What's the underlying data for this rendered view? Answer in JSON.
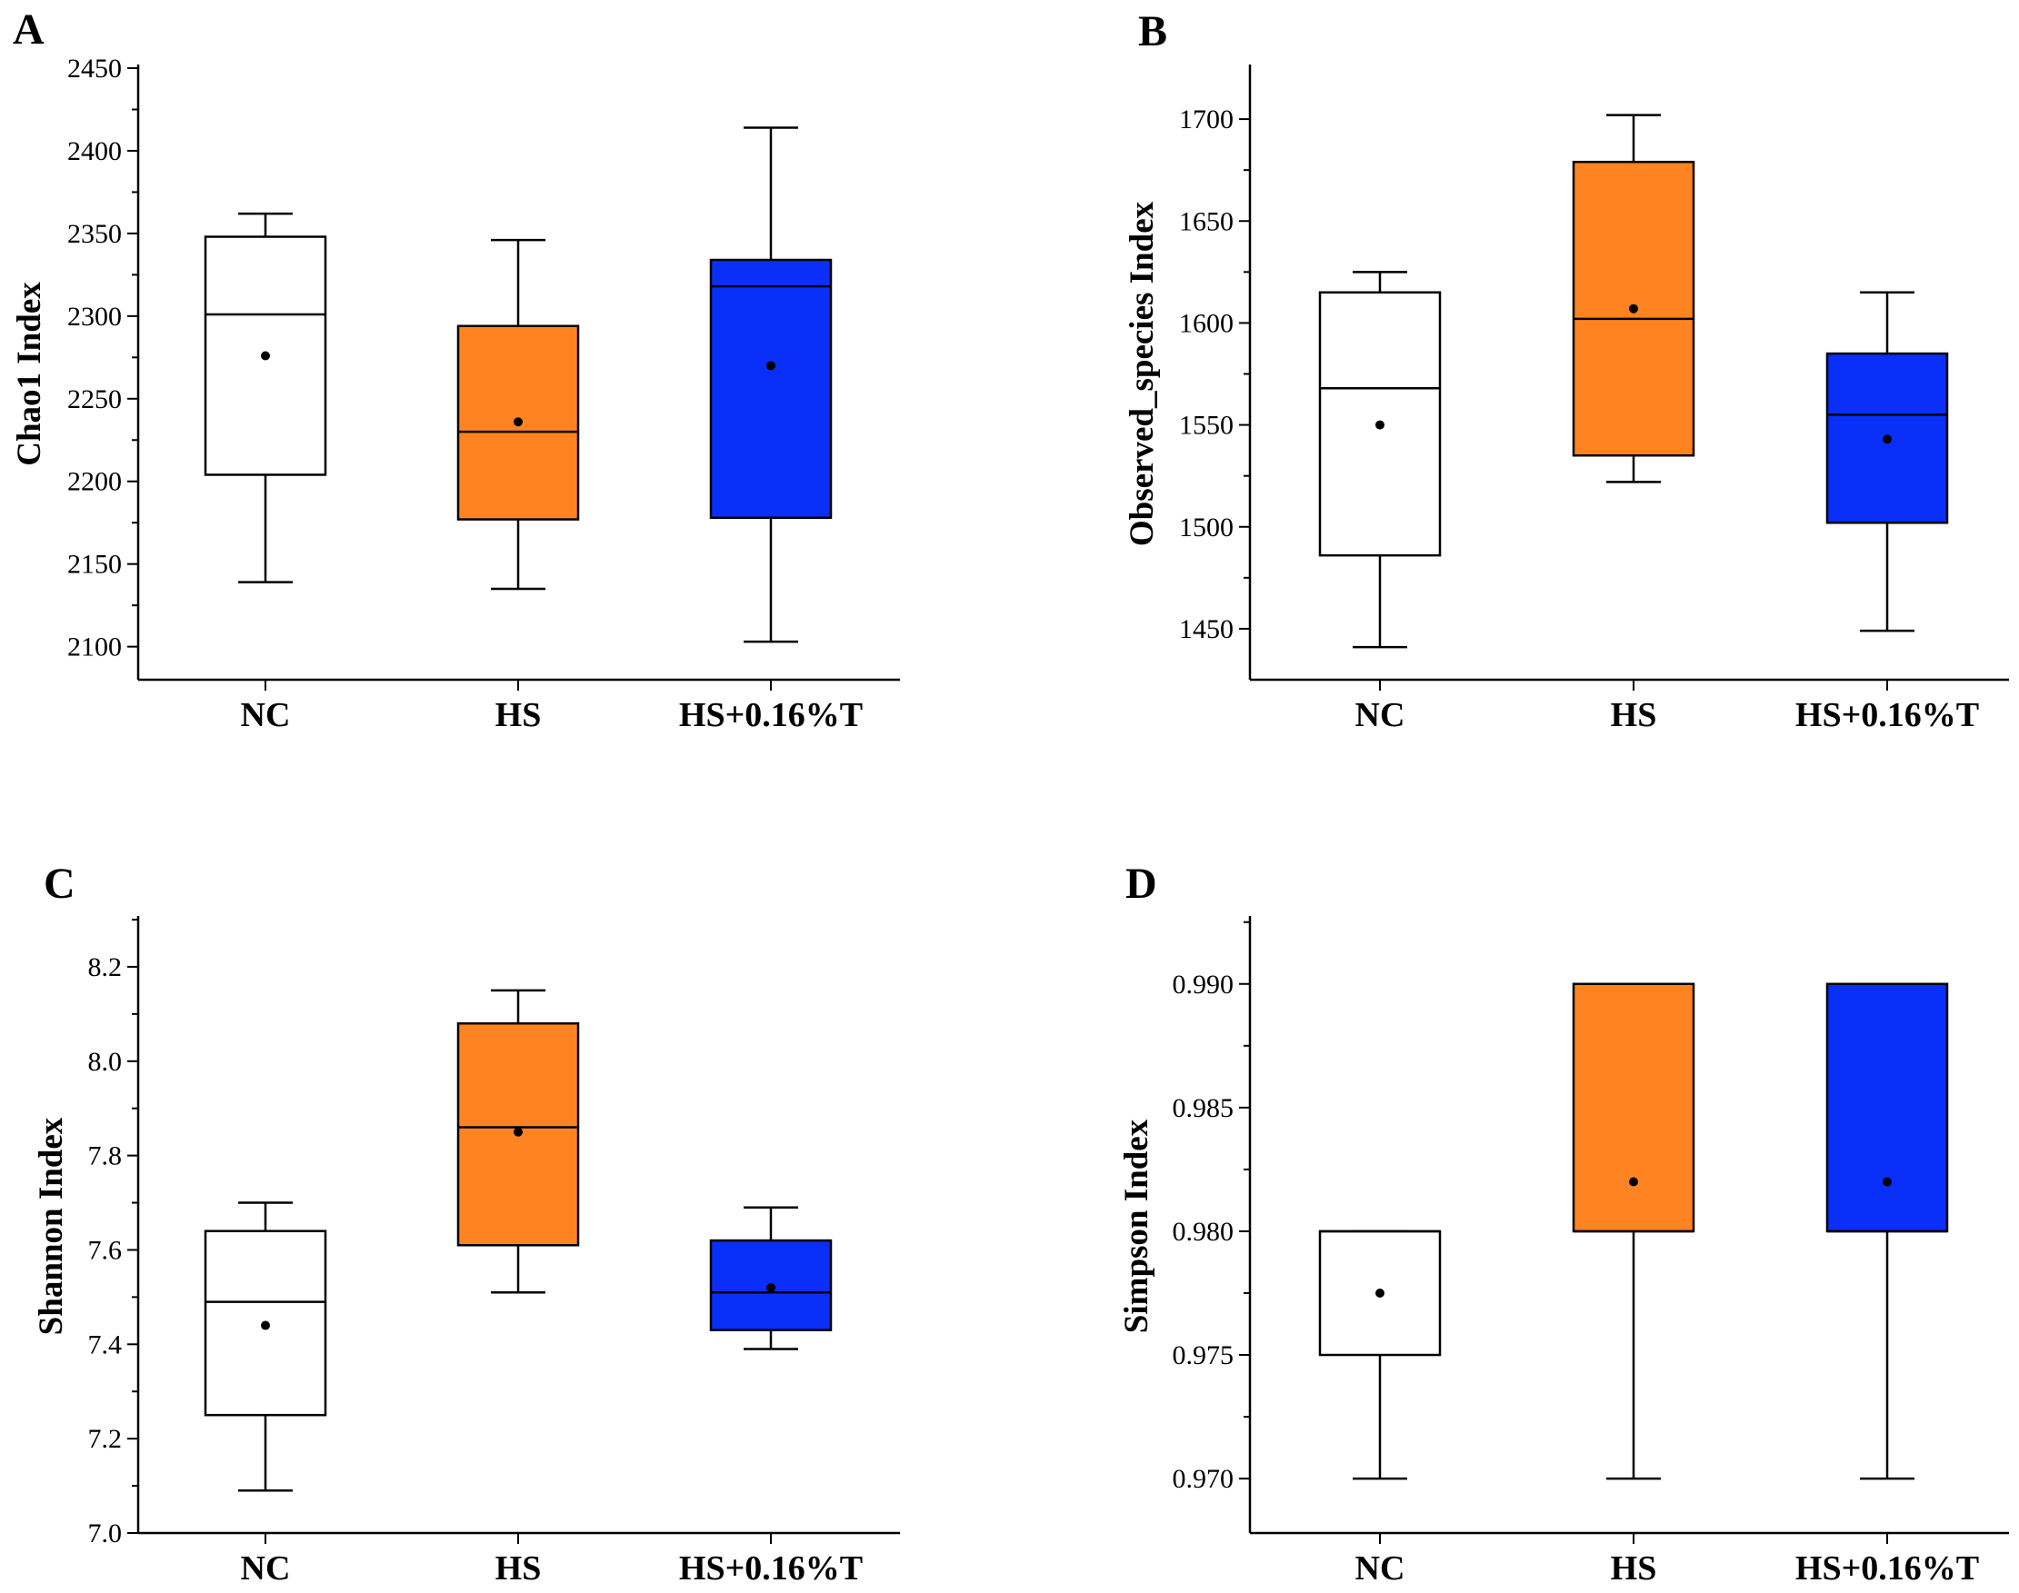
{
  "colors": {
    "NC": "#ffffff",
    "HS": "#ff8421",
    "HS_T": "#0a2ff9",
    "stroke": "#000000"
  },
  "chart_data": [
    {
      "panel": "A",
      "type": "box",
      "ylabel": "Chao1 Index",
      "xlabel": "",
      "ylim": [
        2080,
        2450
      ],
      "yticks": [
        2100,
        2150,
        2200,
        2250,
        2300,
        2350,
        2400,
        2450
      ],
      "tick_decimals": 0,
      "categories": [
        "NC",
        "HS",
        "HS+0.16%T"
      ],
      "boxes": [
        {
          "name": "NC",
          "min": 2139,
          "q1": 2204,
          "median": 2301,
          "q3": 2348,
          "max": 2362,
          "mean": 2276
        },
        {
          "name": "HS",
          "min": 2135,
          "q1": 2177,
          "median": 2230,
          "q3": 2294,
          "max": 2346,
          "mean": 2236
        },
        {
          "name": "HS+0.16%T",
          "min": 2103,
          "q1": 2178,
          "median": 2318,
          "q3": 2334,
          "max": 2414,
          "mean": 2270
        }
      ]
    },
    {
      "panel": "B",
      "type": "box",
      "ylabel": "Observed_species Index",
      "xlabel": "",
      "ylim": [
        1425,
        1725
      ],
      "yticks": [
        1450,
        1500,
        1550,
        1600,
        1650,
        1700
      ],
      "tick_decimals": 0,
      "categories": [
        "NC",
        "HS",
        "HS+0.16%T"
      ],
      "boxes": [
        {
          "name": "NC",
          "min": 1441,
          "q1": 1486,
          "median": 1568,
          "q3": 1615,
          "max": 1625,
          "mean": 1550
        },
        {
          "name": "HS",
          "min": 1522,
          "q1": 1535,
          "median": 1602,
          "q3": 1679,
          "max": 1702,
          "mean": 1607
        },
        {
          "name": "HS+0.16%T",
          "min": 1449,
          "q1": 1502,
          "median": 1555,
          "q3": 1585,
          "max": 1615,
          "mean": 1543
        }
      ]
    },
    {
      "panel": "C",
      "type": "box",
      "ylabel": "Shannon Index",
      "xlabel": "",
      "ylim": [
        7.0,
        8.3
      ],
      "yticks": [
        7.0,
        7.2,
        7.4,
        7.6,
        7.8,
        8.0,
        8.2
      ],
      "tick_decimals": 1,
      "categories": [
        "NC",
        "HS",
        "HS+0.16%T"
      ],
      "boxes": [
        {
          "name": "NC",
          "min": 7.09,
          "q1": 7.25,
          "median": 7.49,
          "q3": 7.64,
          "max": 7.7,
          "mean": 7.44
        },
        {
          "name": "HS",
          "min": 7.51,
          "q1": 7.61,
          "median": 7.86,
          "q3": 8.08,
          "max": 8.15,
          "mean": 7.85
        },
        {
          "name": "HS+0.16%T",
          "min": 7.39,
          "q1": 7.43,
          "median": 7.51,
          "q3": 7.62,
          "max": 7.69,
          "mean": 7.52
        }
      ]
    },
    {
      "panel": "D",
      "type": "box",
      "ylabel": "Simpson Index",
      "xlabel": "",
      "ylim": [
        0.9678,
        0.9926
      ],
      "yticks": [
        0.97,
        0.975,
        0.98,
        0.985,
        0.99
      ],
      "tick_decimals": 3,
      "categories": [
        "NC",
        "HS",
        "HS+0.16%T"
      ],
      "boxes": [
        {
          "name": "NC",
          "min": 0.97,
          "q1": 0.975,
          "median": 0.98,
          "q3": 0.98,
          "max": 0.98,
          "mean": 0.9775
        },
        {
          "name": "HS",
          "min": 0.97,
          "q1": 0.98,
          "median": 0.98,
          "q3": 0.99,
          "max": 0.99,
          "mean": 0.982
        },
        {
          "name": "HS+0.16%T",
          "min": 0.97,
          "q1": 0.98,
          "median": 0.98,
          "q3": 0.99,
          "max": 0.99,
          "mean": 0.982
        }
      ]
    }
  ]
}
